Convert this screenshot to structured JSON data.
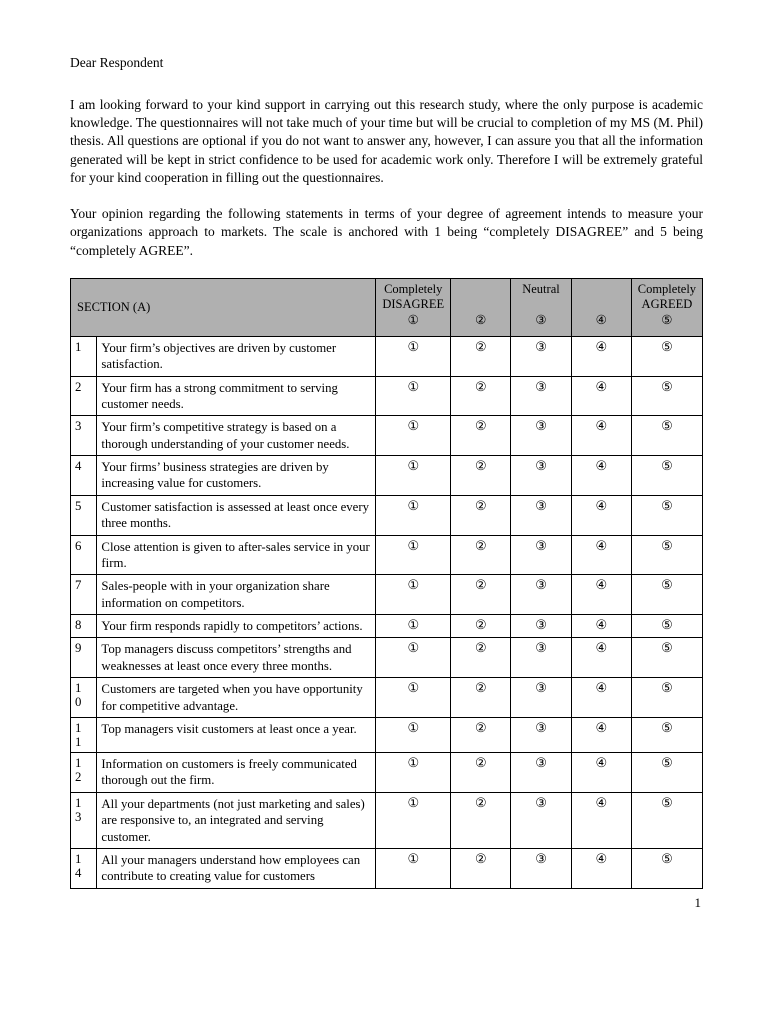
{
  "greeting": "Dear Respondent",
  "intro_para": "I am looking forward to your kind support in carrying out this research study, where the only purpose is academic knowledge. The questionnaires will not take much of your time but will be crucial to completion of my MS (M. Phil) thesis. All questions are optional if you do not want to answer any, however, I can assure you that all the information generated will be kept in strict confidence to be used for academic work only. Therefore I will be extremely grateful for your kind cooperation in filling out the questionnaires.",
  "scale_para": "Your opinion regarding the following statements in terms of your degree of agreement intends to measure your organizations approach to markets. The scale is anchored with 1 being “completely DISAGREE” and 5 being “completely AGREE”.",
  "section_label": "SECTION (A)",
  "header": {
    "col1": "Completely\nDISAGREE",
    "col3": "Neutral",
    "col5": "Completely\nAGREED"
  },
  "circled": [
    "①",
    "②",
    "③",
    "④",
    "⑤"
  ],
  "rows": [
    {
      "n": "1",
      "stmt": "Your firm’s objectives are driven by customer satisfaction."
    },
    {
      "n": "2",
      "stmt": "Your firm has a strong commitment to serving customer needs."
    },
    {
      "n": "3",
      "stmt": "Your firm’s competitive strategy is based on a thorough understanding of your customer needs."
    },
    {
      "n": "4",
      "stmt": "Your firms’ business strategies are driven by increasing value for customers."
    },
    {
      "n": "5",
      "stmt": "Customer satisfaction is assessed at least once every three months."
    },
    {
      "n": "6",
      "stmt": "Close attention is given to after-sales service in your firm."
    },
    {
      "n": "7",
      "stmt": "Sales-people with in your organization share information on competitors."
    },
    {
      "n": "8",
      "stmt": "Your firm responds rapidly to competitors’ actions."
    },
    {
      "n": "9",
      "stmt": "Top managers discuss competitors’ strengths and weaknesses at least once every three months."
    },
    {
      "n": "10",
      "stmt": "Customers are targeted when you have opportunity for competitive advantage."
    },
    {
      "n": "11",
      "stmt": "Top managers visit customers at least once a year."
    },
    {
      "n": "12",
      "stmt": "Information on customers is freely communicated thorough out the firm."
    },
    {
      "n": "13",
      "stmt": "All your departments (not just marketing and sales) are responsive to, an integrated and serving customer."
    },
    {
      "n": "14",
      "stmt": "All your managers understand how employees can contribute to creating value for customers"
    }
  ],
  "page_number": "1"
}
